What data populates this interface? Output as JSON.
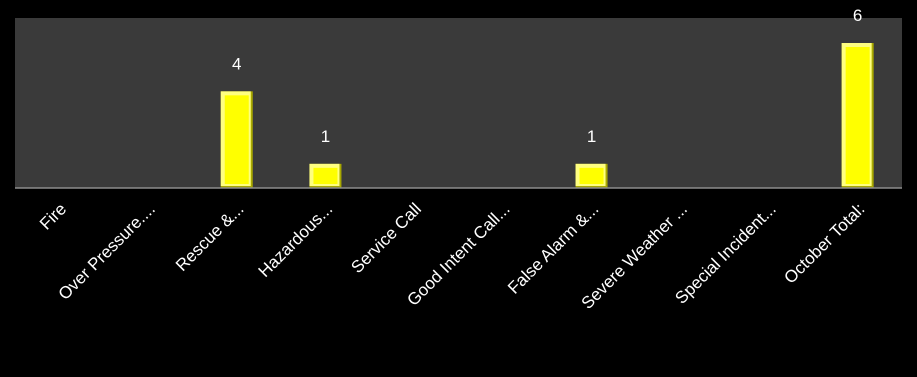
{
  "chart_data": {
    "type": "bar",
    "title": "",
    "xlabel": "",
    "ylabel": "",
    "categories": [
      "Fire",
      "Over Pressure....",
      "Rescue &...",
      "Hazardous...",
      "Service Call",
      "Good Intent Call...",
      "False Alarm &...",
      "Severe Weather ...",
      "Special Incident...",
      "October Total:"
    ],
    "values": [
      0,
      0,
      4,
      1,
      0,
      0,
      1,
      0,
      0,
      6
    ],
    "data_labels": [
      "",
      "",
      "4",
      "1",
      "",
      "",
      "1",
      "",
      "",
      "6"
    ],
    "ylim": [
      0,
      6
    ],
    "grid": false,
    "legend": "none",
    "colors": {
      "page_background": "#000000",
      "plot_background": "#3a3a3a",
      "bar_fill": "#ffff00",
      "bar_highlight": "#ffff80",
      "bar_shadow": "#a8a800",
      "axis_line": "#8c8c8c",
      "text": "#ffffff"
    }
  }
}
